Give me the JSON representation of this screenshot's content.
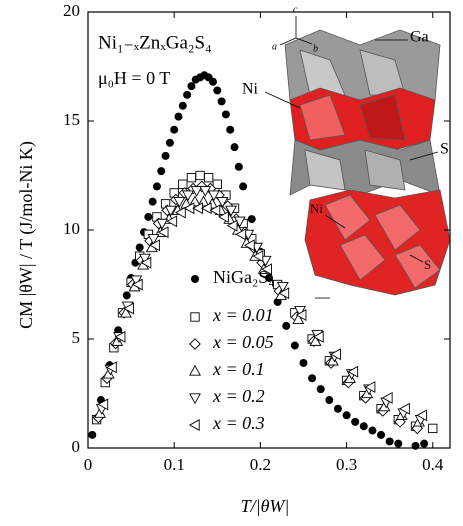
{
  "chart_data": {
    "type": "scatter",
    "title": "Ni₁₋ₓZnₓGa₂S₄",
    "subtitle": "μ₀H = 0 T",
    "x_label": "T/|θW|",
    "y_label": "CM |θW| / T (J/mol-Ni K)",
    "xlim": [
      0,
      0.42
    ],
    "ylim": [
      0,
      20
    ],
    "xticks": [
      0,
      0.1,
      0.2,
      0.3,
      0.4
    ],
    "yticks": [
      0,
      5,
      10,
      15,
      20
    ],
    "legend": "lower-left",
    "series": [
      {
        "name": "NiGa₂S₄",
        "color": "#000000",
        "marker": "filled-circle",
        "x": [
          0.005,
          0.01,
          0.015,
          0.02,
          0.025,
          0.03,
          0.035,
          0.04,
          0.045,
          0.05,
          0.055,
          0.06,
          0.065,
          0.07,
          0.075,
          0.08,
          0.085,
          0.09,
          0.095,
          0.1,
          0.105,
          0.11,
          0.115,
          0.12,
          0.125,
          0.13,
          0.135,
          0.14,
          0.145,
          0.15,
          0.155,
          0.16,
          0.165,
          0.17,
          0.175,
          0.18,
          0.19,
          0.2,
          0.21,
          0.22,
          0.23,
          0.24,
          0.25,
          0.26,
          0.27,
          0.28,
          0.29,
          0.3,
          0.31,
          0.32,
          0.33,
          0.34,
          0.35,
          0.36,
          0.38,
          0.39
        ],
        "values": [
          0.6,
          1.3,
          2.2,
          3.0,
          3.8,
          4.6,
          5.4,
          6.2,
          7.0,
          7.8,
          8.5,
          9.2,
          9.9,
          10.6,
          11.3,
          12.0,
          12.7,
          13.4,
          14.0,
          14.6,
          15.2,
          15.7,
          16.2,
          16.6,
          16.9,
          17.0,
          17.1,
          17.0,
          16.8,
          16.4,
          15.9,
          15.3,
          14.6,
          13.8,
          12.9,
          12.0,
          10.5,
          9.0,
          7.8,
          6.7,
          5.6,
          4.7,
          3.9,
          3.2,
          2.7,
          2.2,
          1.8,
          1.5,
          1.2,
          1.0,
          0.8,
          0.6,
          0.3,
          0.2,
          0.1,
          0.2
        ]
      },
      {
        "name": "x = 0.01",
        "color": "#000000",
        "marker": "square",
        "x": [
          0.01,
          0.02,
          0.03,
          0.04,
          0.05,
          0.06,
          0.07,
          0.08,
          0.09,
          0.1,
          0.11,
          0.12,
          0.13,
          0.14,
          0.15,
          0.16,
          0.17,
          0.18,
          0.19,
          0.2,
          0.22,
          0.24,
          0.26,
          0.28,
          0.3,
          0.32,
          0.34,
          0.36,
          0.38,
          0.4
        ],
        "values": [
          1.3,
          3.0,
          4.6,
          6.2,
          7.6,
          8.8,
          9.8,
          10.6,
          11.2,
          11.7,
          12.1,
          12.4,
          12.5,
          12.4,
          12.1,
          11.6,
          11.0,
          10.3,
          9.6,
          8.9,
          7.5,
          6.2,
          5.0,
          4.0,
          3.1,
          2.4,
          1.8,
          1.3,
          1.0,
          0.9
        ]
      },
      {
        "name": "x = 0.05",
        "color": "#000000",
        "marker": "diamond",
        "x": [
          0.012,
          0.022,
          0.032,
          0.042,
          0.052,
          0.062,
          0.072,
          0.082,
          0.092,
          0.102,
          0.112,
          0.122,
          0.132,
          0.142,
          0.152,
          0.162,
          0.172,
          0.182,
          0.192,
          0.202,
          0.222,
          0.242,
          0.262,
          0.282,
          0.302,
          0.322,
          0.342,
          0.362,
          0.382
        ],
        "values": [
          1.4,
          3.2,
          4.8,
          6.2,
          7.5,
          8.6,
          9.5,
          10.3,
          10.9,
          11.4,
          11.7,
          11.9,
          12.0,
          11.9,
          11.6,
          11.1,
          10.5,
          9.9,
          9.2,
          8.5,
          7.2,
          6.0,
          4.9,
          3.9,
          3.0,
          2.3,
          1.7,
          1.2,
          0.9
        ]
      },
      {
        "name": "x = 0.1",
        "color": "#000000",
        "marker": "triangle-up",
        "x": [
          0.014,
          0.024,
          0.034,
          0.044,
          0.054,
          0.064,
          0.074,
          0.084,
          0.094,
          0.104,
          0.114,
          0.124,
          0.134,
          0.144,
          0.154,
          0.164,
          0.174,
          0.184,
          0.194,
          0.204,
          0.224,
          0.244,
          0.264,
          0.284,
          0.304,
          0.324,
          0.344,
          0.364,
          0.384
        ],
        "values": [
          1.6,
          3.4,
          4.9,
          6.2,
          7.4,
          8.4,
          9.2,
          9.9,
          10.5,
          10.9,
          11.2,
          11.3,
          11.3,
          11.2,
          10.9,
          10.5,
          10.0,
          9.4,
          8.8,
          8.2,
          7.0,
          5.9,
          4.9,
          4.0,
          3.2,
          2.5,
          1.9,
          1.5,
          1.2
        ]
      },
      {
        "name": "x = 0.2",
        "color": "#000000",
        "marker": "triangle-down",
        "x": [
          0.016,
          0.026,
          0.036,
          0.046,
          0.056,
          0.066,
          0.076,
          0.086,
          0.096,
          0.106,
          0.116,
          0.126,
          0.136,
          0.146,
          0.156,
          0.166,
          0.176,
          0.186,
          0.196,
          0.206,
          0.226,
          0.246,
          0.266,
          0.286,
          0.306,
          0.326,
          0.346,
          0.366,
          0.386
        ],
        "values": [
          1.8,
          3.6,
          5.1,
          6.5,
          7.7,
          8.7,
          9.6,
          10.3,
          10.9,
          11.3,
          11.6,
          11.8,
          11.8,
          11.6,
          11.3,
          10.9,
          10.4,
          9.8,
          9.2,
          8.6,
          7.4,
          6.3,
          5.2,
          4.2,
          3.4,
          2.7,
          2.1,
          1.6,
          1.3
        ]
      },
      {
        "name": "x = 0.3",
        "color": "#000000",
        "marker": "triangle-left",
        "x": [
          0.018,
          0.028,
          0.038,
          0.048,
          0.058,
          0.068,
          0.078,
          0.088,
          0.098,
          0.108,
          0.118,
          0.128,
          0.138,
          0.148,
          0.158,
          0.168,
          0.178,
          0.188,
          0.198,
          0.208,
          0.228,
          0.248,
          0.268,
          0.288,
          0.308,
          0.328,
          0.348,
          0.368,
          0.388
        ],
        "values": [
          2.0,
          3.7,
          5.1,
          6.4,
          7.5,
          8.5,
          9.3,
          9.9,
          10.4,
          10.8,
          11.0,
          11.0,
          11.0,
          10.9,
          10.6,
          10.2,
          9.8,
          9.3,
          8.8,
          8.2,
          7.1,
          6.1,
          5.1,
          4.3,
          3.5,
          2.8,
          2.3,
          1.8,
          1.5
        ]
      }
    ],
    "annotations": [
      "Ga",
      "Ni",
      "S",
      "Ni",
      "S",
      "a",
      "b",
      "c"
    ]
  }
}
